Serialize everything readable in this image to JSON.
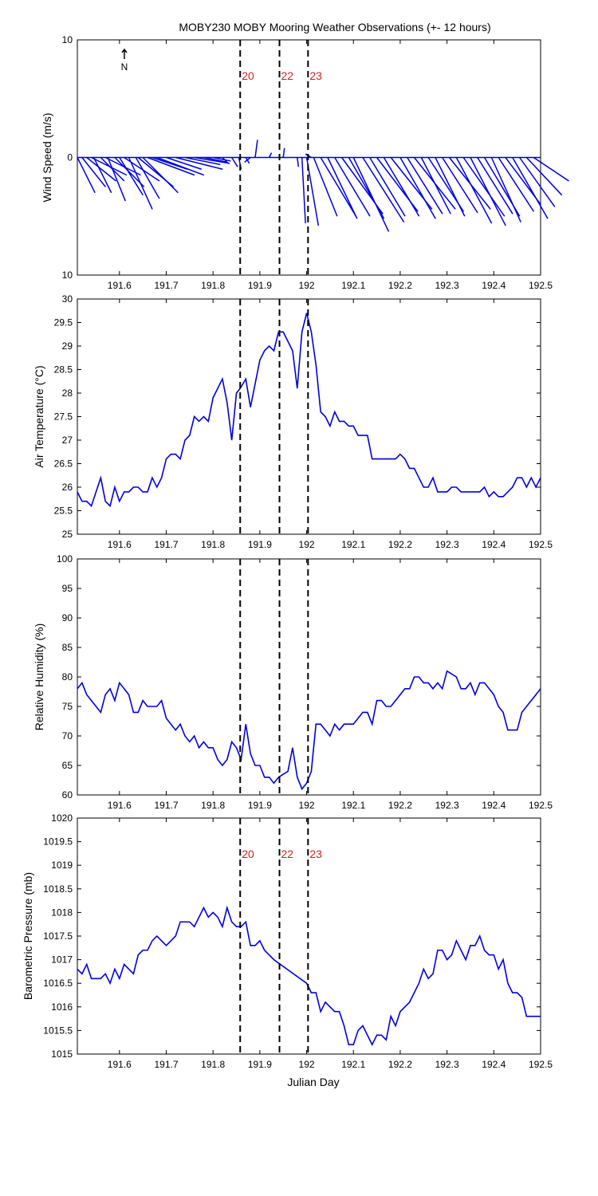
{
  "title": "MOBY230 MOBY Mooring Weather Observations (+- 12 hours)",
  "xlabel": "Julian Day",
  "north_label": "N",
  "marker_color": "#cc2222",
  "line_color": "#0000dd",
  "xlim": [
    191.51,
    192.5
  ],
  "xticks": [
    "191.6",
    "191.7",
    "191.8",
    "191.9",
    "192",
    "192.1",
    "192.2",
    "192.3",
    "192.4",
    "192.5"
  ],
  "xtick_values": [
    191.6,
    191.7,
    191.8,
    191.9,
    192.0,
    192.1,
    192.2,
    192.3,
    192.4,
    192.5
  ],
  "overpasses": [
    {
      "label": "20",
      "x": 191.858
    },
    {
      "label": "22",
      "x": 191.942
    },
    {
      "label": "23",
      "x": 192.003
    }
  ],
  "chart_data": [
    {
      "type": "line",
      "name": "wind",
      "ylabel": "Wind Speed (m/s)",
      "ylim": [
        -10,
        10
      ],
      "yticks": [
        "10",
        "0",
        "10"
      ],
      "ytick_values": [
        10,
        0,
        -10
      ],
      "show_markers": true,
      "stick_plot": true,
      "sticks": [
        {
          "x": 191.51,
          "u": 1.5,
          "v": -3
        },
        {
          "x": 191.52,
          "u": 2,
          "v": -2.5
        },
        {
          "x": 191.53,
          "u": 2.5,
          "v": -2
        },
        {
          "x": 191.54,
          "u": 3,
          "v": -1.5
        },
        {
          "x": 191.545,
          "u": 1.5,
          "v": -3
        },
        {
          "x": 191.56,
          "u": 2,
          "v": -2
        },
        {
          "x": 191.57,
          "u": 3,
          "v": -1.5
        },
        {
          "x": 191.575,
          "u": 1.5,
          "v": -3.7
        },
        {
          "x": 191.59,
          "u": 2.5,
          "v": -2.5
        },
        {
          "x": 191.6,
          "u": 2,
          "v": -3.2
        },
        {
          "x": 191.61,
          "u": 3,
          "v": -2
        },
        {
          "x": 191.62,
          "u": 2,
          "v": -4.4
        },
        {
          "x": 191.635,
          "u": 2,
          "v": -3.5
        },
        {
          "x": 191.64,
          "u": 3,
          "v": -2.5
        },
        {
          "x": 191.65,
          "u": 3,
          "v": -3
        },
        {
          "x": 191.66,
          "u": 4,
          "v": -1.5
        },
        {
          "x": 191.67,
          "u": 3,
          "v": -1
        },
        {
          "x": 191.68,
          "u": 4,
          "v": -1.5
        },
        {
          "x": 191.7,
          "u": 3,
          "v": -1
        },
        {
          "x": 191.72,
          "u": 4,
          "v": -1
        },
        {
          "x": 191.74,
          "u": 3,
          "v": -0.6
        },
        {
          "x": 191.76,
          "u": 3,
          "v": -0.5
        },
        {
          "x": 191.78,
          "u": 2,
          "v": -0.4
        },
        {
          "x": 191.8,
          "u": 1.5,
          "v": -0.3
        },
        {
          "x": 191.82,
          "u": 0.5,
          "v": -0.5
        },
        {
          "x": 191.84,
          "u": 0.5,
          "v": -0.8
        },
        {
          "x": 191.855,
          "u": 0.2,
          "v": -1
        },
        {
          "x": 191.87,
          "u": 0.3,
          "v": -0.5
        },
        {
          "x": 191.88,
          "u": -0.5,
          "v": -0.4
        },
        {
          "x": 191.89,
          "u": 0.2,
          "v": 1.5
        },
        {
          "x": 191.92,
          "u": 0.2,
          "v": 0.4
        },
        {
          "x": 191.95,
          "u": 0.1,
          "v": 0.8
        },
        {
          "x": 191.98,
          "u": 0.1,
          "v": -0.8
        },
        {
          "x": 191.99,
          "u": 0.3,
          "v": -5.6
        },
        {
          "x": 192.0,
          "u": 1,
          "v": -5.8
        },
        {
          "x": 192.01,
          "u": -0.5,
          "v": 0.3
        },
        {
          "x": 192.015,
          "u": 2,
          "v": -5
        },
        {
          "x": 192.03,
          "u": 3,
          "v": -5
        },
        {
          "x": 192.045,
          "u": 2.5,
          "v": -5.2
        },
        {
          "x": 192.06,
          "u": 3,
          "v": -5
        },
        {
          "x": 192.075,
          "u": 3.5,
          "v": -4.8
        },
        {
          "x": 192.09,
          "u": 3,
          "v": -5.2
        },
        {
          "x": 192.1,
          "u": 3,
          "v": -6.3
        },
        {
          "x": 192.12,
          "u": 3.5,
          "v": -5.5
        },
        {
          "x": 192.135,
          "u": 3,
          "v": -5
        },
        {
          "x": 192.15,
          "u": 3.5,
          "v": -4.6
        },
        {
          "x": 192.165,
          "u": 3,
          "v": -5
        },
        {
          "x": 192.18,
          "u": 3.5,
          "v": -4.4
        },
        {
          "x": 192.2,
          "u": 3,
          "v": -5.2
        },
        {
          "x": 192.215,
          "u": 3,
          "v": -4.8
        },
        {
          "x": 192.23,
          "u": 3.5,
          "v": -4.4
        },
        {
          "x": 192.245,
          "u": 2.5,
          "v": -4.8
        },
        {
          "x": 192.26,
          "u": 3,
          "v": -4.6
        },
        {
          "x": 192.275,
          "u": 2.5,
          "v": -5
        },
        {
          "x": 192.29,
          "u": 3,
          "v": -4.7
        },
        {
          "x": 192.305,
          "u": 3.5,
          "v": -4.4
        },
        {
          "x": 192.32,
          "u": 3,
          "v": -5.6
        },
        {
          "x": 192.335,
          "u": 3.5,
          "v": -5
        },
        {
          "x": 192.35,
          "u": 3,
          "v": -5.8
        },
        {
          "x": 192.365,
          "u": 3,
          "v": -4.8
        },
        {
          "x": 192.38,
          "u": 3,
          "v": -5
        },
        {
          "x": 192.395,
          "u": 2.5,
          "v": -5.5
        },
        {
          "x": 192.41,
          "u": 3,
          "v": -4.6
        },
        {
          "x": 192.425,
          "u": 3,
          "v": -4
        },
        {
          "x": 192.44,
          "u": 3,
          "v": -5.2
        },
        {
          "x": 192.455,
          "u": 3,
          "v": -4.2
        },
        {
          "x": 192.47,
          "u": 3,
          "v": -3.2
        },
        {
          "x": 192.485,
          "u": 3,
          "v": -2
        }
      ]
    },
    {
      "type": "line",
      "name": "air_temperature",
      "ylabel": "Air Temperature (°C)",
      "ylim": [
        25,
        30
      ],
      "yticks": [
        "25",
        "25.5",
        "26",
        "26.5",
        "27",
        "27.5",
        "28",
        "28.5",
        "29",
        "29.5",
        "30"
      ],
      "ytick_values": [
        25,
        25.5,
        26,
        26.5,
        27,
        27.5,
        28,
        28.5,
        29,
        29.5,
        30
      ],
      "x": [
        191.51,
        191.52,
        191.53,
        191.54,
        191.55,
        191.56,
        191.57,
        191.58,
        191.59,
        191.6,
        191.61,
        191.62,
        191.63,
        191.64,
        191.65,
        191.66,
        191.67,
        191.68,
        191.69,
        191.7,
        191.71,
        191.72,
        191.73,
        191.74,
        191.75,
        191.76,
        191.77,
        191.78,
        191.79,
        191.8,
        191.81,
        191.82,
        191.83,
        191.84,
        191.85,
        191.858,
        191.87,
        191.88,
        191.89,
        191.9,
        191.91,
        191.92,
        191.93,
        191.94,
        191.95,
        191.96,
        191.97,
        191.98,
        191.99,
        192.0,
        192.01,
        192.02,
        192.03,
        192.04,
        192.05,
        192.06,
        192.07,
        192.08,
        192.09,
        192.1,
        192.11,
        192.12,
        192.13,
        192.14,
        192.15,
        192.16,
        192.17,
        192.18,
        192.19,
        192.2,
        192.21,
        192.22,
        192.23,
        192.24,
        192.25,
        192.26,
        192.27,
        192.28,
        192.29,
        192.3,
        192.31,
        192.32,
        192.33,
        192.34,
        192.35,
        192.36,
        192.37,
        192.38,
        192.39,
        192.4,
        192.41,
        192.42,
        192.43,
        192.44,
        192.45,
        192.46,
        192.47,
        192.48,
        192.49,
        192.5
      ],
      "y": [
        25.9,
        25.7,
        25.7,
        25.6,
        25.9,
        26.2,
        25.7,
        25.6,
        26.0,
        25.7,
        25.9,
        25.9,
        26.0,
        26.0,
        25.9,
        25.9,
        26.2,
        26.0,
        26.2,
        26.6,
        26.7,
        26.7,
        26.6,
        27.0,
        27.1,
        27.5,
        27.4,
        27.5,
        27.4,
        27.9,
        28.1,
        28.3,
        27.8,
        27.0,
        28.0,
        28.1,
        28.3,
        27.7,
        28.2,
        28.7,
        28.9,
        29.0,
        28.9,
        29.3,
        29.3,
        29.1,
        28.9,
        28.1,
        29.3,
        29.7,
        29.3,
        28.6,
        27.6,
        27.5,
        27.3,
        27.6,
        27.4,
        27.4,
        27.3,
        27.3,
        27.1,
        27.1,
        27.1,
        26.6,
        26.6,
        26.6,
        26.6,
        26.6,
        26.6,
        26.7,
        26.6,
        26.4,
        26.4,
        26.2,
        26.0,
        26.0,
        26.2,
        25.9,
        25.9,
        25.9,
        26.0,
        26.0,
        25.9,
        25.9,
        25.9,
        25.9,
        25.9,
        26.0,
        25.8,
        25.9,
        25.8,
        25.8,
        25.9,
        26.0,
        26.2,
        26.2,
        26.0,
        26.2,
        26.0,
        26.2
      ]
    },
    {
      "type": "line",
      "name": "relative_humidity",
      "ylabel": "Relative Humidity (%)",
      "ylim": [
        60,
        100
      ],
      "yticks": [
        "60",
        "65",
        "70",
        "75",
        "80",
        "85",
        "90",
        "95",
        "100"
      ],
      "ytick_values": [
        60,
        65,
        70,
        75,
        80,
        85,
        90,
        95,
        100
      ],
      "x": [
        191.51,
        191.52,
        191.53,
        191.54,
        191.55,
        191.56,
        191.57,
        191.58,
        191.59,
        191.6,
        191.61,
        191.62,
        191.63,
        191.64,
        191.65,
        191.66,
        191.67,
        191.68,
        191.69,
        191.7,
        191.71,
        191.72,
        191.73,
        191.74,
        191.75,
        191.76,
        191.77,
        191.78,
        191.79,
        191.8,
        191.81,
        191.82,
        191.83,
        191.84,
        191.85,
        191.86,
        191.87,
        191.88,
        191.89,
        191.9,
        191.91,
        191.92,
        191.93,
        191.94,
        191.95,
        191.96,
        191.97,
        191.98,
        191.99,
        192.0,
        192.01,
        192.02,
        192.03,
        192.04,
        192.05,
        192.06,
        192.07,
        192.08,
        192.09,
        192.1,
        192.11,
        192.12,
        192.13,
        192.14,
        192.15,
        192.16,
        192.17,
        192.18,
        192.19,
        192.2,
        192.21,
        192.22,
        192.23,
        192.24,
        192.25,
        192.26,
        192.27,
        192.28,
        192.29,
        192.3,
        192.31,
        192.32,
        192.33,
        192.34,
        192.35,
        192.36,
        192.37,
        192.38,
        192.39,
        192.4,
        192.41,
        192.42,
        192.43,
        192.44,
        192.45,
        192.46,
        192.47,
        192.48,
        192.49,
        192.5
      ],
      "y": [
        78,
        79,
        77,
        76,
        75,
        74,
        77,
        78,
        76,
        79,
        78,
        77,
        74,
        74,
        76,
        75,
        75,
        75,
        76,
        73,
        72,
        71,
        72,
        70,
        69,
        70,
        68,
        69,
        68,
        68,
        66,
        65,
        66,
        69,
        68,
        66,
        72,
        67,
        65,
        65,
        63,
        63,
        62,
        63,
        63.5,
        64,
        68,
        63,
        61,
        62,
        64,
        72,
        72,
        71,
        70,
        72,
        71,
        72,
        72,
        72,
        73,
        74,
        74,
        72,
        76,
        76,
        75,
        75,
        76,
        77,
        78,
        78,
        80,
        80,
        79,
        79,
        78,
        79,
        78,
        81,
        80.5,
        80,
        78,
        78,
        79,
        77,
        79,
        79,
        78,
        77,
        75,
        74,
        71,
        71,
        71,
        74,
        75,
        76,
        77,
        78
      ]
    },
    {
      "type": "line",
      "name": "barometric_pressure",
      "ylabel": "Barometric Pressure (mb)",
      "ylim": [
        1015,
        1020
      ],
      "yticks": [
        "1015",
        "1015.5",
        "1016",
        "1016.5",
        "1017",
        "1017.5",
        "1018",
        "1018.5",
        "1019",
        "1019.5",
        "1020"
      ],
      "ytick_values": [
        1015,
        1015.5,
        1016,
        1016.5,
        1017,
        1017.5,
        1018,
        1018.5,
        1019,
        1019.5,
        1020
      ],
      "show_markers": true,
      "x": [
        191.51,
        191.52,
        191.53,
        191.54,
        191.55,
        191.56,
        191.57,
        191.58,
        191.59,
        191.6,
        191.61,
        191.62,
        191.63,
        191.64,
        191.65,
        191.66,
        191.67,
        191.68,
        191.69,
        191.7,
        191.71,
        191.72,
        191.73,
        191.74,
        191.75,
        191.76,
        191.77,
        191.78,
        191.79,
        191.8,
        191.81,
        191.82,
        191.83,
        191.84,
        191.85,
        191.86,
        191.87,
        191.88,
        191.89,
        191.9,
        191.91,
        191.92,
        191.93,
        192.0,
        192.01,
        192.02,
        192.03,
        192.04,
        192.05,
        192.06,
        192.07,
        192.08,
        192.09,
        192.1,
        192.11,
        192.12,
        192.13,
        192.14,
        192.15,
        192.16,
        192.17,
        192.18,
        192.19,
        192.2,
        192.21,
        192.22,
        192.23,
        192.24,
        192.25,
        192.26,
        192.27,
        192.28,
        192.29,
        192.3,
        192.31,
        192.32,
        192.33,
        192.34,
        192.35,
        192.36,
        192.37,
        192.38,
        192.39,
        192.4,
        192.41,
        192.42,
        192.43,
        192.44,
        192.45,
        192.46,
        192.47,
        192.48,
        192.49,
        192.5
      ],
      "y": [
        1016.8,
        1016.7,
        1016.9,
        1016.6,
        1016.6,
        1016.6,
        1016.7,
        1016.5,
        1016.8,
        1016.6,
        1016.9,
        1016.8,
        1016.7,
        1017.1,
        1017.2,
        1017.2,
        1017.4,
        1017.5,
        1017.4,
        1017.3,
        1017.4,
        1017.5,
        1017.8,
        1017.8,
        1017.8,
        1017.7,
        1017.9,
        1018.1,
        1017.9,
        1018.0,
        1017.9,
        1017.7,
        1018.1,
        1017.8,
        1017.7,
        1017.7,
        1017.8,
        1017.3,
        1017.3,
        1017.4,
        1017.2,
        1017.1,
        1017.0,
        1016.5,
        1016.3,
        1016.3,
        1015.9,
        1016.1,
        1016.0,
        1015.9,
        1015.9,
        1015.6,
        1015.2,
        1015.2,
        1015.5,
        1015.6,
        1015.4,
        1015.2,
        1015.4,
        1015.4,
        1015.3,
        1015.8,
        1015.6,
        1015.9,
        1016.0,
        1016.1,
        1016.3,
        1016.5,
        1016.8,
        1016.6,
        1016.7,
        1017.2,
        1017.2,
        1017.0,
        1017.1,
        1017.4,
        1017.2,
        1017.0,
        1017.3,
        1017.3,
        1017.5,
        1017.2,
        1017.1,
        1017.1,
        1016.8,
        1017.0,
        1016.5,
        1016.3,
        1016.3,
        1016.2,
        1015.8,
        1015.8,
        1015.8,
        1015.8
      ]
    }
  ]
}
